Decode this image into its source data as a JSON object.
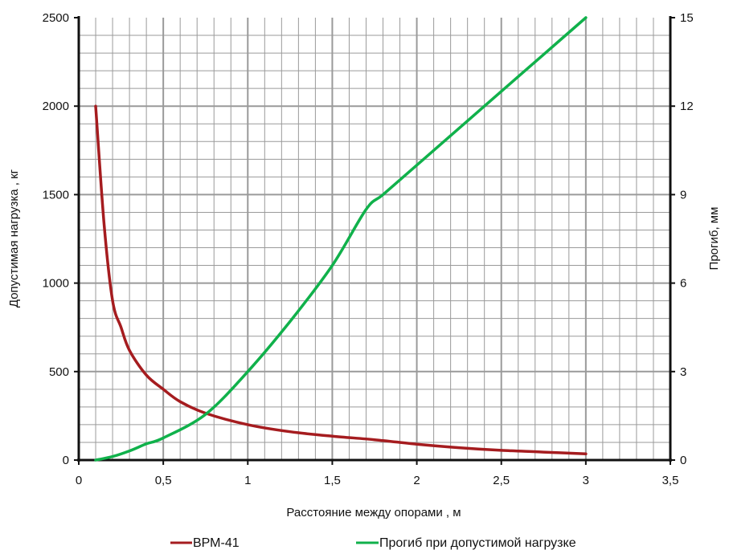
{
  "colors": {
    "grid": "#9a9a9a",
    "axis": "#111111",
    "series_load": "#a51c1f",
    "series_deflection": "#10b14b"
  },
  "chart_data": {
    "type": "line",
    "title": "",
    "xlabel": "Расстояние между опорами , м",
    "ylabel_left": "Допустимая нагрузка ,  кг",
    "ylabel_right": "Прогиб, мм",
    "xlim": [
      0,
      3.5
    ],
    "ylim_left": [
      0,
      2500
    ],
    "ylim_right": [
      0,
      15
    ],
    "x_ticks": [
      0,
      0.5,
      1,
      1.5,
      2,
      2.5,
      3,
      3.5
    ],
    "x_tick_labels": [
      "0",
      "0,5",
      "1",
      "1,5",
      "2",
      "2,5",
      "3",
      "3,5"
    ],
    "y_left_ticks": [
      0,
      500,
      1000,
      1500,
      2000,
      2500
    ],
    "y_left_tick_labels": [
      "0",
      "500",
      "1000",
      "1500",
      "2000",
      "2500"
    ],
    "y_right_ticks": [
      0,
      3,
      6,
      9,
      12,
      15
    ],
    "y_right_tick_labels": [
      "0",
      "3",
      "6",
      "9",
      "12",
      "15"
    ],
    "grid": true,
    "legend_position": "bottom",
    "series": [
      {
        "name": "ВРМ-41",
        "axis": "left",
        "x": [
          0.1,
          0.15,
          0.2,
          0.25,
          0.3,
          0.4,
          0.5,
          0.6,
          0.75,
          1,
          1.25,
          1.5,
          1.75,
          2,
          2.25,
          2.5,
          2.75,
          3
        ],
        "y": [
          2000,
          1333,
          900,
          750,
          620,
          480,
          400,
          330,
          265,
          200,
          160,
          135,
          115,
          90,
          70,
          55,
          45,
          35
        ]
      },
      {
        "name": "Прогиб при допустимой нагрузке",
        "axis": "right",
        "x": [
          0.1,
          0.2,
          0.3,
          0.4,
          0.5,
          0.75,
          1,
          1.25,
          1.5,
          1.7,
          1.8,
          2,
          2.25,
          2.5,
          2.75,
          3
        ],
        "y": [
          0,
          0.12,
          0.31,
          0.55,
          0.75,
          1.55,
          3.0,
          4.7,
          6.6,
          8.5,
          9.0,
          10.0,
          11.25,
          12.5,
          13.75,
          15
        ]
      }
    ]
  }
}
